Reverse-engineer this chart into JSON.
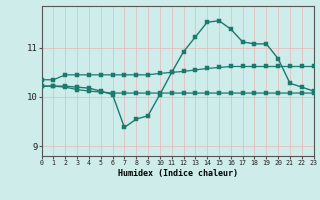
{
  "xlabel": "Humidex (Indice chaleur)",
  "bg_color": "#ceecea",
  "line_color": "#1a7a6e",
  "grid_color_v": "#e8b8b8",
  "grid_color_h": "#c8e0de",
  "xlim": [
    0,
    23
  ],
  "ylim": [
    8.8,
    11.85
  ],
  "yticks": [
    9,
    10,
    11
  ],
  "xticks": [
    0,
    1,
    2,
    3,
    4,
    5,
    6,
    7,
    8,
    9,
    10,
    11,
    12,
    13,
    14,
    15,
    16,
    17,
    18,
    19,
    20,
    21,
    22,
    23
  ],
  "series1_x": [
    0,
    1,
    2,
    3,
    4,
    5,
    6,
    7,
    8,
    9,
    10,
    11,
    12,
    13,
    14,
    15,
    16,
    17,
    18,
    19,
    20,
    21,
    22,
    23
  ],
  "series1_y": [
    10.35,
    10.35,
    10.45,
    10.45,
    10.45,
    10.45,
    10.45,
    10.45,
    10.45,
    10.45,
    10.48,
    10.5,
    10.52,
    10.55,
    10.58,
    10.6,
    10.62,
    10.62,
    10.62,
    10.62,
    10.62,
    10.62,
    10.62,
    10.62
  ],
  "series2_x": [
    0,
    1,
    2,
    3,
    4,
    5,
    6,
    7,
    8,
    9,
    10,
    11,
    12,
    13,
    14,
    15,
    16,
    17,
    18,
    19,
    20,
    21,
    22,
    23
  ],
  "series2_y": [
    10.22,
    10.22,
    10.2,
    10.15,
    10.12,
    10.1,
    10.08,
    10.08,
    10.08,
    10.08,
    10.08,
    10.08,
    10.08,
    10.08,
    10.08,
    10.08,
    10.08,
    10.08,
    10.08,
    10.08,
    10.08,
    10.08,
    10.08,
    10.08
  ],
  "series3_x": [
    0,
    1,
    2,
    3,
    4,
    5,
    6,
    7,
    8,
    9,
    10,
    11,
    12,
    13,
    14,
    15,
    16,
    17,
    18,
    19,
    20,
    21,
    22,
    23
  ],
  "series3_y": [
    10.22,
    10.22,
    10.22,
    10.2,
    10.18,
    10.12,
    10.05,
    9.38,
    9.55,
    9.62,
    10.05,
    10.5,
    10.92,
    11.22,
    11.52,
    11.55,
    11.38,
    11.12,
    11.08,
    11.08,
    10.78,
    10.28,
    10.2,
    10.12
  ]
}
